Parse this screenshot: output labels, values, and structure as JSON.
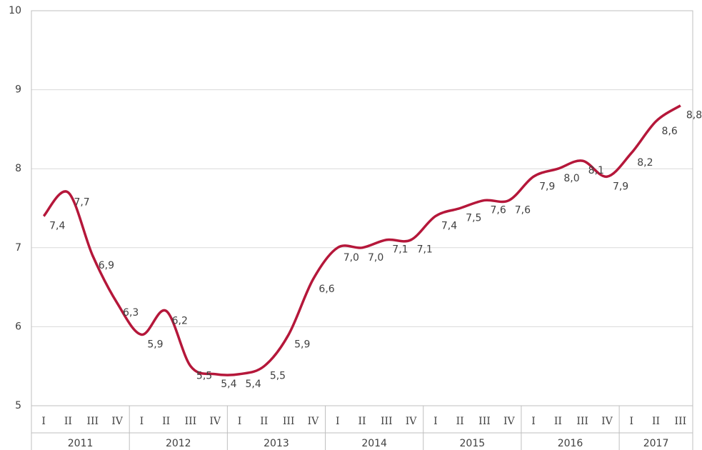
{
  "chart_data": {
    "type": "line",
    "groups": [
      {
        "name": "2011",
        "categories": [
          "I",
          "II",
          "III",
          "IV"
        ]
      },
      {
        "name": "2012",
        "categories": [
          "I",
          "II",
          "III",
          "IV"
        ]
      },
      {
        "name": "2013",
        "categories": [
          "I",
          "II",
          "III",
          "IV"
        ]
      },
      {
        "name": "2014",
        "categories": [
          "I",
          "II",
          "III",
          "IV"
        ]
      },
      {
        "name": "2015",
        "categories": [
          "I",
          "II",
          "III",
          "IV"
        ]
      },
      {
        "name": "2016",
        "categories": [
          "I",
          "II",
          "III",
          "IV"
        ]
      },
      {
        "name": "2017",
        "categories": [
          "I",
          "II",
          "III"
        ]
      }
    ],
    "values": [
      7.4,
      7.7,
      6.9,
      6.3,
      5.9,
      6.2,
      5.5,
      5.4,
      5.4,
      5.5,
      5.9,
      6.6,
      7.0,
      7.0,
      7.1,
      7.1,
      7.4,
      7.5,
      7.6,
      7.6,
      7.9,
      8.0,
      8.1,
      7.9,
      8.2,
      8.6,
      8.8
    ],
    "value_labels": [
      "7,4",
      "7,7",
      "6,9",
      "6,3",
      "5,9",
      "6,2",
      "5,5",
      "5,4",
      "5,4",
      "5,5",
      "5,9",
      "6,6",
      "7,0",
      "7,0",
      "7,1",
      "7,1",
      "7,4",
      "7,5",
      "7,6",
      "7,6",
      "7,9",
      "8,0",
      "8,1",
      "7,9",
      "8,2",
      "8,6",
      "8,8"
    ],
    "color": "#b5173a",
    "ylim": [
      5,
      10
    ],
    "yticks": [
      5,
      6,
      7,
      8,
      9,
      10
    ],
    "grid": true
  }
}
